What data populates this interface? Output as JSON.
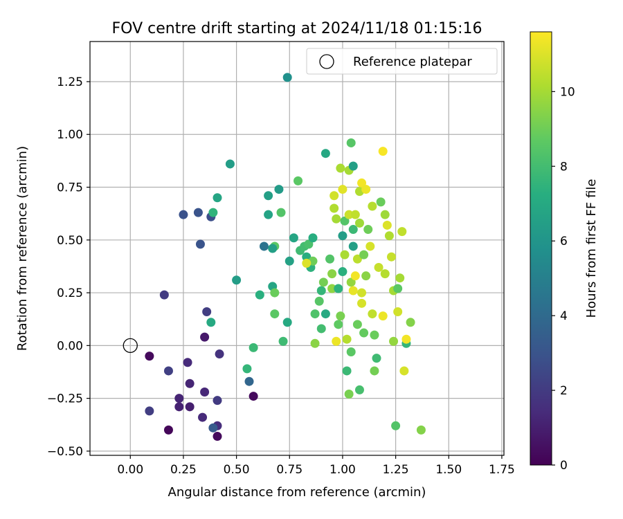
{
  "chart_data": {
    "type": "scatter",
    "title": "FOV centre drift starting at 2024/11/18 01:15:16",
    "xlabel": "Angular distance from reference (arcmin)",
    "ylabel": "Rotation from reference (arcmin)",
    "xlim": [
      -0.19,
      1.76
    ],
    "ylim": [
      -0.52,
      1.44
    ],
    "xticks": [
      "0.00",
      "0.25",
      "0.50",
      "0.75",
      "1.00",
      "1.25",
      "1.50",
      "1.75"
    ],
    "yticks": [
      "−0.50",
      "−0.25",
      "0.00",
      "0.25",
      "0.50",
      "0.75",
      "1.00",
      "1.25"
    ],
    "grid": true,
    "legend": {
      "placement": "top-right",
      "label": "Reference platepar"
    },
    "reference_point": {
      "x": 0.0,
      "y": 0.0
    },
    "colorbar": {
      "label": "Hours from first FF file",
      "colormap": "viridis",
      "range": [
        0,
        11.6
      ],
      "ticks": [
        "0",
        "2",
        "4",
        "6",
        "8",
        "10"
      ]
    },
    "series": [
      {
        "points": [
          {
            "x": 0.09,
            "y": -0.05,
            "c": 0.3
          },
          {
            "x": 0.18,
            "y": -0.4,
            "c": 0.2
          },
          {
            "x": 0.41,
            "y": -0.43,
            "c": 0.3
          },
          {
            "x": 0.58,
            "y": -0.24,
            "c": 0.3
          },
          {
            "x": 0.35,
            "y": 0.04,
            "c": 0.8
          },
          {
            "x": 0.28,
            "y": -0.29,
            "c": 1.0
          },
          {
            "x": 0.23,
            "y": -0.29,
            "c": 1.1
          },
          {
            "x": 0.23,
            "y": -0.25,
            "c": 1.2
          },
          {
            "x": 0.28,
            "y": -0.18,
            "c": 1.2
          },
          {
            "x": 0.27,
            "y": -0.08,
            "c": 1.4
          },
          {
            "x": 0.35,
            "y": -0.22,
            "c": 1.3
          },
          {
            "x": 0.34,
            "y": -0.34,
            "c": 1.4
          },
          {
            "x": 0.41,
            "y": -0.38,
            "c": 1.5
          },
          {
            "x": 0.42,
            "y": -0.04,
            "c": 1.7
          },
          {
            "x": 0.41,
            "y": -0.26,
            "c": 2.0
          },
          {
            "x": 0.09,
            "y": -0.31,
            "c": 2.1
          },
          {
            "x": 0.18,
            "y": -0.12,
            "c": 2.2
          },
          {
            "x": 0.16,
            "y": 0.24,
            "c": 2.0
          },
          {
            "x": 0.36,
            "y": 0.16,
            "c": 2.1
          },
          {
            "x": 0.25,
            "y": 0.62,
            "c": 2.9
          },
          {
            "x": 0.32,
            "y": 0.63,
            "c": 3.0
          },
          {
            "x": 0.38,
            "y": 0.61,
            "c": 2.8
          },
          {
            "x": 0.33,
            "y": 0.48,
            "c": 3.0
          },
          {
            "x": 0.39,
            "y": -0.39,
            "c": 3.3
          },
          {
            "x": 0.56,
            "y": -0.17,
            "c": 3.8
          },
          {
            "x": 0.63,
            "y": 0.47,
            "c": 4.4
          },
          {
            "x": 0.74,
            "y": 1.27,
            "c": 5.8
          },
          {
            "x": 0.47,
            "y": 0.86,
            "c": 6.4
          },
          {
            "x": 0.41,
            "y": 0.7,
            "c": 6.8
          },
          {
            "x": 0.39,
            "y": 0.63,
            "c": 7.5
          },
          {
            "x": 0.38,
            "y": 0.11,
            "c": 7.0
          },
          {
            "x": 0.5,
            "y": 0.31,
            "c": 6.4
          },
          {
            "x": 0.55,
            "y": -0.11,
            "c": 7.6
          },
          {
            "x": 0.58,
            "y": -0.01,
            "c": 7.8
          },
          {
            "x": 0.61,
            "y": 0.24,
            "c": 7.3
          },
          {
            "x": 0.65,
            "y": 0.71,
            "c": 6.5
          },
          {
            "x": 0.65,
            "y": 0.62,
            "c": 6.7
          },
          {
            "x": 0.67,
            "y": 0.28,
            "c": 6.8
          },
          {
            "x": 0.7,
            "y": 0.74,
            "c": 6.3
          },
          {
            "x": 0.71,
            "y": 0.63,
            "c": 8.4
          },
          {
            "x": 0.68,
            "y": 0.47,
            "c": 8.6
          },
          {
            "x": 0.67,
            "y": 0.46,
            "c": 6.5
          },
          {
            "x": 0.68,
            "y": 0.25,
            "c": 8.9
          },
          {
            "x": 0.68,
            "y": 0.15,
            "c": 8.6
          },
          {
            "x": 0.72,
            "y": 0.02,
            "c": 7.9
          },
          {
            "x": 0.74,
            "y": 0.11,
            "c": 7.0
          },
          {
            "x": 0.75,
            "y": 0.4,
            "c": 6.6
          },
          {
            "x": 0.77,
            "y": 0.51,
            "c": 6.8
          },
          {
            "x": 0.79,
            "y": 0.78,
            "c": 8.6
          },
          {
            "x": 0.8,
            "y": 0.45,
            "c": 7.9
          },
          {
            "x": 0.82,
            "y": 0.47,
            "c": 8.0
          },
          {
            "x": 0.83,
            "y": 0.42,
            "c": 7.2
          },
          {
            "x": 0.84,
            "y": 0.48,
            "c": 8.2
          },
          {
            "x": 0.85,
            "y": 0.37,
            "c": 7.4
          },
          {
            "x": 0.86,
            "y": 0.4,
            "c": 9.0
          },
          {
            "x": 0.86,
            "y": 0.51,
            "c": 7.2
          },
          {
            "x": 0.87,
            "y": 0.01,
            "c": 9.5
          },
          {
            "x": 0.87,
            "y": 0.15,
            "c": 8.3
          },
          {
            "x": 0.89,
            "y": 0.21,
            "c": 8.5
          },
          {
            "x": 0.9,
            "y": 0.26,
            "c": 7.6
          },
          {
            "x": 0.9,
            "y": 0.08,
            "c": 8.0
          },
          {
            "x": 0.91,
            "y": 0.3,
            "c": 9.1
          },
          {
            "x": 0.92,
            "y": 0.91,
            "c": 6.9
          },
          {
            "x": 0.92,
            "y": 0.15,
            "c": 7.0
          },
          {
            "x": 0.94,
            "y": 0.41,
            "c": 8.4
          },
          {
            "x": 0.95,
            "y": 0.34,
            "c": 9.5
          },
          {
            "x": 0.95,
            "y": 0.27,
            "c": 9.6
          },
          {
            "x": 0.96,
            "y": 0.71,
            "c": 10.8
          },
          {
            "x": 0.96,
            "y": 0.65,
            "c": 10.2
          },
          {
            "x": 0.97,
            "y": 0.6,
            "c": 10.0
          },
          {
            "x": 0.98,
            "y": 0.27,
            "c": 7.4
          },
          {
            "x": 0.98,
            "y": 0.1,
            "c": 8.7
          },
          {
            "x": 0.99,
            "y": 0.84,
            "c": 10.1
          },
          {
            "x": 0.99,
            "y": 0.14,
            "c": 9.2
          },
          {
            "x": 1.0,
            "y": 0.74,
            "c": 11.1
          },
          {
            "x": 1.0,
            "y": 0.52,
            "c": 6.4
          },
          {
            "x": 1.0,
            "y": 0.35,
            "c": 7.3
          },
          {
            "x": 1.01,
            "y": 0.43,
            "c": 10.1
          },
          {
            "x": 1.01,
            "y": 0.59,
            "c": 8.4
          },
          {
            "x": 1.02,
            "y": 0.03,
            "c": 10.3
          },
          {
            "x": 1.02,
            "y": -0.12,
            "c": 7.8
          },
          {
            "x": 1.03,
            "y": 0.83,
            "c": 10.0
          },
          {
            "x": 1.03,
            "y": 0.62,
            "c": 10.7
          },
          {
            "x": 1.03,
            "y": -0.23,
            "c": 9.2
          },
          {
            "x": 1.04,
            "y": 0.96,
            "c": 8.5
          },
          {
            "x": 1.04,
            "y": 0.3,
            "c": 9.7
          },
          {
            "x": 1.04,
            "y": -0.03,
            "c": 8.6
          },
          {
            "x": 1.05,
            "y": 0.55,
            "c": 7.8
          },
          {
            "x": 1.05,
            "y": 0.85,
            "c": 6.5
          },
          {
            "x": 1.05,
            "y": 0.47,
            "c": 6.5
          },
          {
            "x": 1.06,
            "y": 0.33,
            "c": 11.4
          },
          {
            "x": 1.06,
            "y": 0.62,
            "c": 10.5
          },
          {
            "x": 1.07,
            "y": 0.1,
            "c": 8.9
          },
          {
            "x": 1.07,
            "y": 0.41,
            "c": 10.4
          },
          {
            "x": 1.08,
            "y": 0.73,
            "c": 10.2
          },
          {
            "x": 1.08,
            "y": 0.58,
            "c": 9.9
          },
          {
            "x": 1.08,
            "y": -0.21,
            "c": 8.1
          },
          {
            "x": 1.09,
            "y": 0.25,
            "c": 10.8
          },
          {
            "x": 1.09,
            "y": 0.77,
            "c": 11.4
          },
          {
            "x": 1.1,
            "y": 0.43,
            "c": 9.1
          },
          {
            "x": 1.1,
            "y": 0.06,
            "c": 8.8
          },
          {
            "x": 1.11,
            "y": 0.74,
            "c": 11.3
          },
          {
            "x": 1.11,
            "y": 0.33,
            "c": 9.5
          },
          {
            "x": 1.12,
            "y": 0.55,
            "c": 9.0
          },
          {
            "x": 1.13,
            "y": 0.47,
            "c": 10.9
          },
          {
            "x": 1.14,
            "y": 0.66,
            "c": 10.3
          },
          {
            "x": 1.14,
            "y": 0.15,
            "c": 10.5
          },
          {
            "x": 1.15,
            "y": -0.12,
            "c": 9.1
          },
          {
            "x": 1.15,
            "y": 0.05,
            "c": 8.9
          },
          {
            "x": 1.16,
            "y": -0.06,
            "c": 7.9
          },
          {
            "x": 1.17,
            "y": 0.37,
            "c": 10.6
          },
          {
            "x": 1.18,
            "y": 0.68,
            "c": 8.9
          },
          {
            "x": 1.19,
            "y": 0.92,
            "c": 11.5
          },
          {
            "x": 1.19,
            "y": 0.14,
            "c": 11.3
          },
          {
            "x": 1.2,
            "y": 0.62,
            "c": 9.9
          },
          {
            "x": 1.2,
            "y": 0.34,
            "c": 10.3
          },
          {
            "x": 1.21,
            "y": 0.57,
            "c": 11.0
          },
          {
            "x": 1.22,
            "y": 0.52,
            "c": 10.2
          },
          {
            "x": 1.23,
            "y": 0.42,
            "c": 10.6
          },
          {
            "x": 1.24,
            "y": 0.02,
            "c": 9.7
          },
          {
            "x": 1.24,
            "y": 0.26,
            "c": 10.0
          },
          {
            "x": 1.25,
            "y": -0.38,
            "c": 8.4
          },
          {
            "x": 1.26,
            "y": 0.16,
            "c": 10.8
          },
          {
            "x": 1.26,
            "y": 0.27,
            "c": 8.6
          },
          {
            "x": 1.27,
            "y": 0.32,
            "c": 10.0
          },
          {
            "x": 1.28,
            "y": 0.54,
            "c": 10.5
          },
          {
            "x": 1.29,
            "y": -0.12,
            "c": 10.9
          },
          {
            "x": 1.3,
            "y": 0.01,
            "c": 7.6
          },
          {
            "x": 1.3,
            "y": 0.03,
            "c": 11.4
          },
          {
            "x": 1.32,
            "y": 0.11,
            "c": 9.4
          },
          {
            "x": 1.37,
            "y": -0.4,
            "c": 9.4
          },
          {
            "x": 0.97,
            "y": 0.02,
            "c": 11.3
          },
          {
            "x": 1.05,
            "y": 0.26,
            "c": 11.2
          },
          {
            "x": 1.09,
            "y": 0.2,
            "c": 10.9
          },
          {
            "x": 0.83,
            "y": 0.39,
            "c": 11.0
          }
        ]
      }
    ]
  }
}
